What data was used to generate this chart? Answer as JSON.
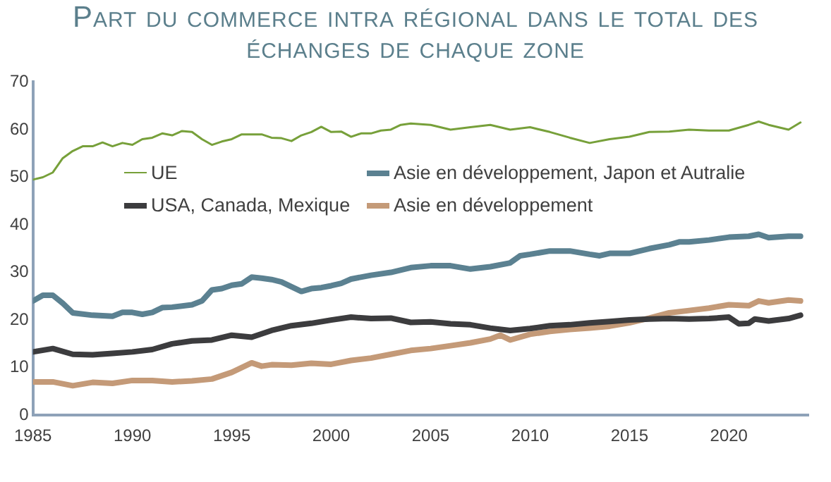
{
  "chart_data": {
    "type": "line",
    "title": "Part du commerce intra régional dans le total des échanges de chaque zone",
    "xlim": [
      1985,
      2024
    ],
    "xticks": [
      1985,
      1990,
      1995,
      2000,
      2005,
      2010,
      2015,
      2020
    ],
    "ylim": [
      0,
      70
    ],
    "yticks": [
      0,
      10,
      20,
      30,
      40,
      50,
      60,
      70
    ],
    "grid": false,
    "legend": "top",
    "marker": "none",
    "line_style": "solid",
    "series": [
      {
        "name": "UE",
        "color": "#77a03a",
        "x": [
          1985,
          1985.5,
          1986,
          1986.5,
          1987,
          1987.5,
          1988,
          1988.5,
          1989,
          1989.5,
          1990,
          1990.5,
          1991,
          1991.5,
          1992,
          1992.5,
          1993,
          1993.5,
          1994,
          1994.5,
          1995,
          1995.5,
          1996,
          1996.5,
          1997,
          1997.5,
          1998,
          1998.5,
          1999,
          1999.5,
          2000,
          2000.5,
          2001,
          2001.5,
          2002,
          2002.5,
          2003,
          2003.5,
          2004,
          2005,
          2006,
          2007,
          2008,
          2009,
          2010,
          2011,
          2012,
          2013,
          2014,
          2015,
          2016,
          2017,
          2018,
          2019,
          2020,
          2021,
          2021.5,
          2022,
          2023,
          2023.6
        ],
        "values": [
          49.5,
          50,
          51,
          54,
          55.5,
          56.5,
          56.5,
          57.3,
          56.5,
          57.2,
          56.8,
          58,
          58.3,
          59.2,
          58.8,
          59.7,
          59.5,
          58,
          56.8,
          57.5,
          58,
          59,
          59,
          59,
          58.3,
          58.2,
          57.6,
          58.8,
          59.5,
          60.6,
          59.5,
          59.6,
          58.5,
          59.2,
          59.2,
          59.8,
          60,
          61,
          61.3,
          61,
          60,
          60.5,
          61,
          60,
          60.5,
          59.5,
          58.3,
          57.2,
          58,
          58.5,
          59.5,
          59.6,
          60,
          59.8,
          59.8,
          61,
          61.7,
          61,
          60,
          61.5
        ]
      },
      {
        "name": "Asie en développement, Japon et Autralie",
        "color": "#5b8191",
        "x": [
          1985,
          1985.5,
          1986,
          1986.5,
          1987,
          1988,
          1989,
          1989.5,
          1990,
          1990.5,
          1991,
          1991.5,
          1992,
          1993,
          1993.5,
          1994,
          1994.5,
          1995,
          1995.5,
          1996,
          1996.5,
          1997,
          1997.5,
          1998,
          1998.5,
          1999,
          1999.5,
          2000,
          2000.5,
          2001,
          2002,
          2003,
          2004,
          2005,
          2006,
          2007,
          2008,
          2009,
          2009.5,
          2010,
          2011,
          2012,
          2013,
          2013.5,
          2014,
          2015,
          2016,
          2017,
          2017.5,
          2018,
          2019,
          2020,
          2021,
          2021.5,
          2022,
          2023,
          2023.6
        ],
        "values": [
          24,
          25.2,
          25.2,
          23.5,
          21.5,
          21,
          20.8,
          21.6,
          21.6,
          21.2,
          21.6,
          22.6,
          22.7,
          23.2,
          24,
          26.3,
          26.6,
          27.3,
          27.6,
          29,
          28.8,
          28.5,
          28,
          27,
          26,
          26.6,
          26.8,
          27.2,
          27.7,
          28.6,
          29.4,
          30,
          31,
          31.4,
          31.4,
          30.7,
          31.2,
          32,
          33.5,
          33.8,
          34.5,
          34.5,
          33.8,
          33.5,
          34,
          34,
          35,
          35.8,
          36.4,
          36.4,
          36.8,
          37.4,
          37.6,
          38,
          37.3,
          37.6,
          37.6
        ]
      },
      {
        "name": "USA, Canada, Mexique",
        "color": "#3c3c3e",
        "x": [
          1985,
          1986,
          1987,
          1988,
          1989,
          1990,
          1991,
          1992,
          1993,
          1994,
          1995,
          1996,
          1997,
          1998,
          1999,
          2000,
          2001,
          2002,
          2003,
          2004,
          2005,
          2006,
          2007,
          2008,
          2009,
          2010,
          2011,
          2012,
          2013,
          2014,
          2015,
          2016,
          2017,
          2018,
          2019,
          2020,
          2020.5,
          2021,
          2021.3,
          2022,
          2023,
          2023.6
        ],
        "values": [
          13.3,
          14,
          12.8,
          12.7,
          13,
          13.3,
          13.8,
          15,
          15.6,
          15.8,
          16.8,
          16.4,
          17.8,
          18.8,
          19.3,
          20,
          20.6,
          20.3,
          20.4,
          19.5,
          19.6,
          19.2,
          19,
          18.3,
          17.8,
          18.2,
          18.8,
          19,
          19.4,
          19.7,
          20,
          20.2,
          20.3,
          20.2,
          20.3,
          20.6,
          19.2,
          19.3,
          20.2,
          19.8,
          20.3,
          21
        ]
      },
      {
        "name": "Asie en développement",
        "color": "#c49a78",
        "x": [
          1985,
          1986,
          1987,
          1988,
          1989,
          1990,
          1991,
          1992,
          1993,
          1994,
          1995,
          1995.5,
          1996,
          1996.5,
          1997,
          1998,
          1999,
          2000,
          2001,
          2002,
          2003,
          2004,
          2005,
          2006,
          2007,
          2008,
          2008.5,
          2009,
          2010,
          2011,
          2012,
          2013,
          2014,
          2015,
          2016,
          2017,
          2018,
          2019,
          2020,
          2021,
          2021.5,
          2022,
          2023,
          2023.6
        ],
        "values": [
          7,
          7,
          6.2,
          6.9,
          6.7,
          7.3,
          7.3,
          7,
          7.2,
          7.6,
          9,
          10,
          11,
          10.3,
          10.6,
          10.5,
          10.9,
          10.7,
          11.5,
          12,
          12.8,
          13.6,
          14,
          14.6,
          15.2,
          16,
          16.8,
          15.8,
          17,
          17.6,
          18,
          18.3,
          18.7,
          19.4,
          20.4,
          21.5,
          22,
          22.5,
          23.2,
          23,
          24,
          23.6,
          24.2,
          24
        ]
      }
    ]
  }
}
